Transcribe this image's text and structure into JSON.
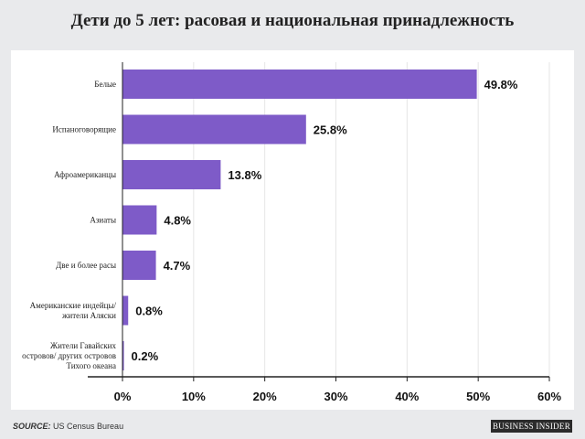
{
  "title": "Дети до 5 лет: расовая и национальная принадлежность",
  "source": {
    "key": "SOURCE:",
    "text": "US Census Bureau"
  },
  "logo": "BUSINESS INSIDER",
  "colors": {
    "bar": "#7e5bc8",
    "axis": "#222222",
    "grid": "#e6e6e6"
  },
  "chart_data": {
    "type": "bar",
    "orientation": "horizontal",
    "title": "Дети до 5 лет: расовая и национальная принадлежность",
    "categories": [
      [
        "Белые"
      ],
      [
        "Испаноговорящие"
      ],
      [
        "Афроамериканцы"
      ],
      [
        "Азиаты"
      ],
      [
        "Две и более расы"
      ],
      [
        "Американские индейцы/",
        "жители Аляски"
      ],
      [
        "Жители Гавайских",
        "островов/ других островов",
        "Тихого океана"
      ]
    ],
    "values": [
      49.8,
      25.8,
      13.8,
      4.8,
      4.7,
      0.8,
      0.2
    ],
    "value_labels": [
      "49.8%",
      "25.8%",
      "13.8%",
      "4.8%",
      "4.7%",
      "0.8%",
      "0.2%"
    ],
    "xlim": [
      0,
      60
    ],
    "ticks": [
      0,
      10,
      20,
      30,
      40,
      50,
      60
    ],
    "tick_labels": [
      "0%",
      "10%",
      "20%",
      "30%",
      "40%",
      "50%",
      "60%"
    ],
    "xlabel": "",
    "ylabel": ""
  }
}
